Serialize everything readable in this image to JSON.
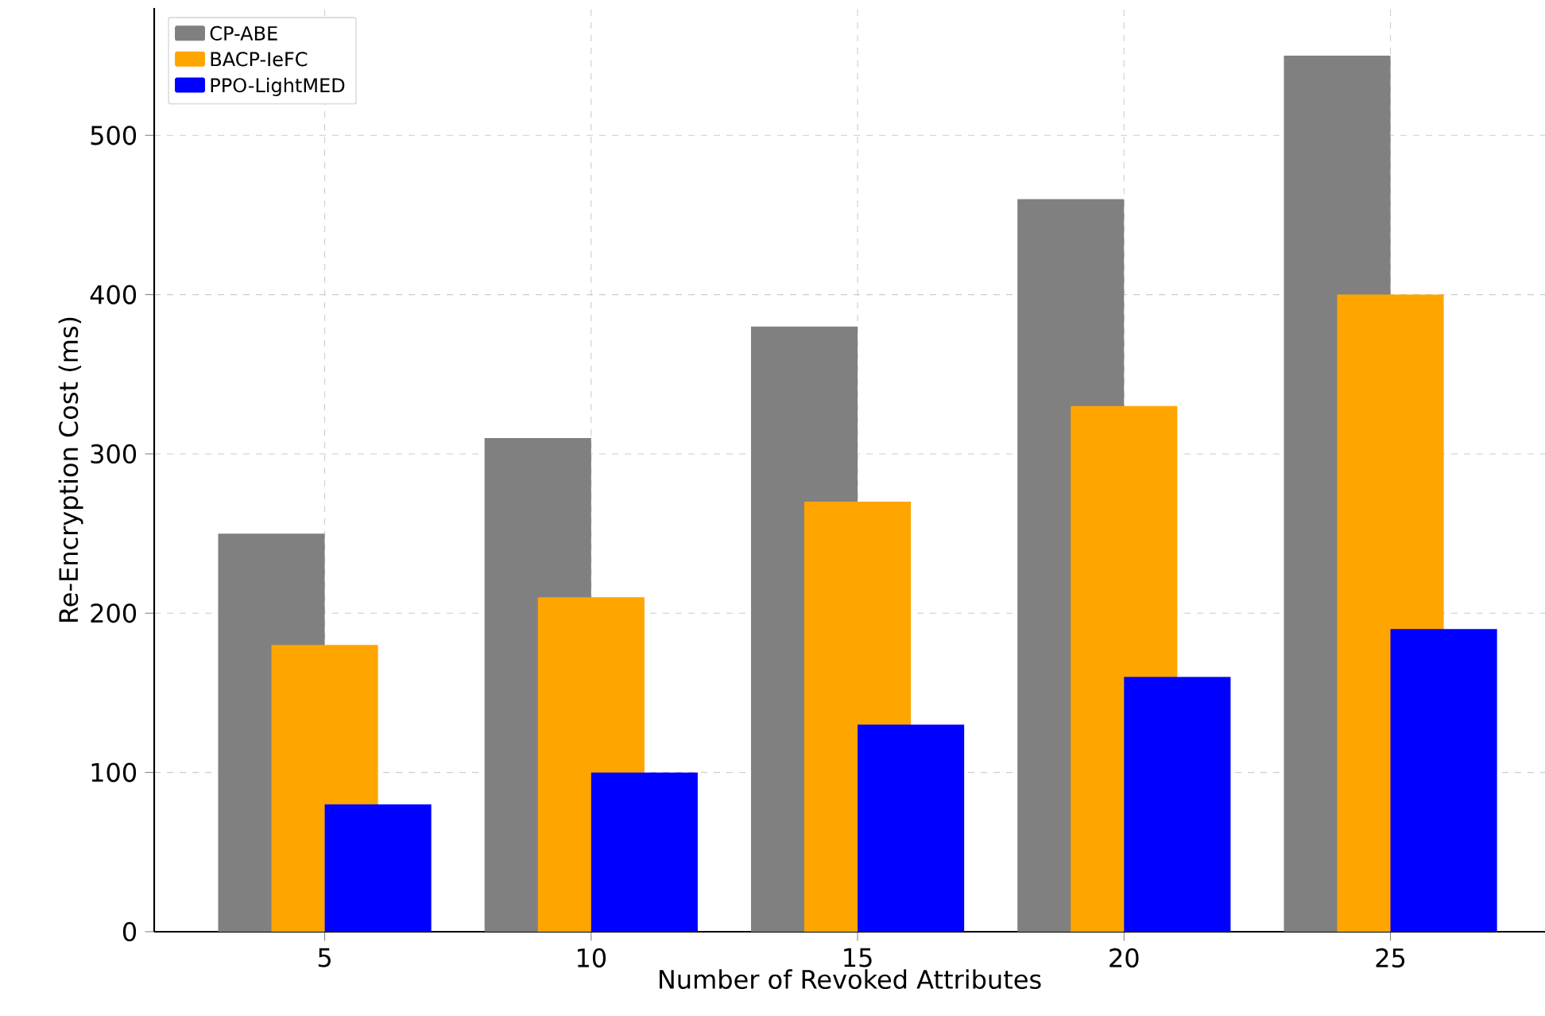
{
  "chart_data": {
    "type": "bar",
    "xlabel": "Number of Revoked Attributes",
    "ylabel": "Re-Encryption Cost (ms)",
    "x": [
      5,
      10,
      15,
      20,
      25
    ],
    "series": [
      {
        "name": "CP-ABE",
        "color": "#808080",
        "values": [
          250,
          310,
          380,
          460,
          550
        ]
      },
      {
        "name": "BACP-IeFC",
        "color": "#ffa500",
        "values": [
          180,
          210,
          270,
          330,
          400
        ]
      },
      {
        "name": "PPO-LightMED",
        "color": "#0000ff",
        "values": [
          80,
          100,
          130,
          160,
          190
        ]
      }
    ],
    "xlim": [
      1.8,
      27.9
    ],
    "xticks": [
      5,
      10,
      15,
      20,
      25
    ],
    "ylim": [
      0,
      580
    ],
    "yticks": [
      0,
      100,
      200,
      300,
      400,
      500
    ],
    "grid": true,
    "legend": "top left"
  }
}
